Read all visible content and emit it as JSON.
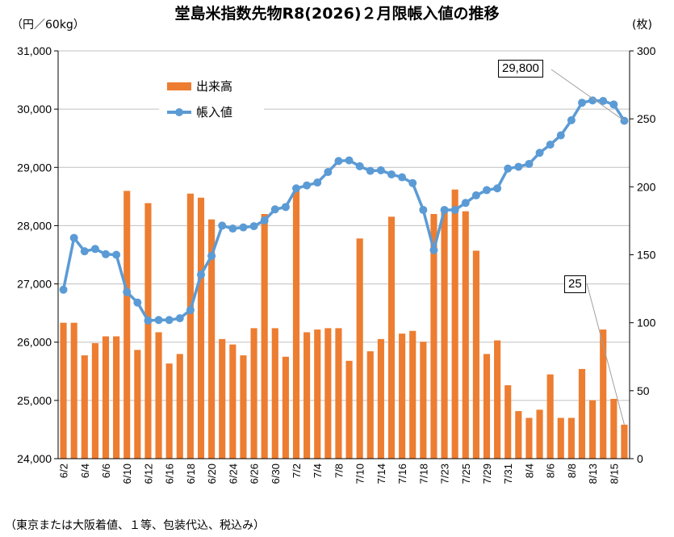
{
  "title": "堂島米指数先物R8(2026)２月限帳入値の推移",
  "unit_left": "（円／60kg）",
  "unit_right": "(枚)",
  "footnote": "（東京または大阪着値、１等、包装代込、税込み）",
  "legend": {
    "volume": "出来高",
    "price": "帳入値"
  },
  "callouts": {
    "last_price": "29,800",
    "last_volume": "25"
  },
  "colors": {
    "bar": "#ed7d31",
    "line": "#5b9bd5",
    "grid": "#c0c0c0"
  },
  "chart_data": {
    "type": "bar+line",
    "title": "堂島米指数先物R8(2026)２月限帳入値の推移",
    "x": [
      "6/2",
      "6/3",
      "6/4",
      "6/5",
      "6/6",
      "6/9",
      "6/10",
      "6/11",
      "6/12",
      "6/13",
      "6/16",
      "6/17",
      "6/18",
      "6/19",
      "6/20",
      "6/23",
      "6/24",
      "6/25",
      "6/26",
      "6/27",
      "6/30",
      "7/1",
      "7/2",
      "7/3",
      "7/4",
      "7/7",
      "7/8",
      "7/9",
      "7/10",
      "7/11",
      "7/14",
      "7/15",
      "7/16",
      "7/17",
      "7/18",
      "7/22",
      "7/23",
      "7/24",
      "7/25",
      "7/28",
      "7/29",
      "7/30",
      "7/31",
      "8/1",
      "8/4",
      "8/5",
      "8/6",
      "8/7",
      "8/8",
      "8/12",
      "8/13",
      "8/14",
      "8/15",
      "8/18"
    ],
    "x_tick_labels": [
      "6/2",
      "6/4",
      "6/6",
      "6/10",
      "6/12",
      "6/16",
      "6/18",
      "6/20",
      "6/24",
      "6/26",
      "6/30",
      "7/2",
      "7/4",
      "7/8",
      "7/10",
      "7/14",
      "7/16",
      "7/18",
      "7/23",
      "7/25",
      "7/29",
      "7/31",
      "8/4",
      "8/6",
      "8/8",
      "8/13",
      "8/15"
    ],
    "y_left": {
      "label": "（円／60kg）",
      "ylim": [
        24000,
        31000
      ],
      "ticks": [
        "24,000",
        "25,000",
        "26,000",
        "27,000",
        "28,000",
        "29,000",
        "30,000",
        "31,000"
      ]
    },
    "y_right": {
      "label": "(枚)",
      "ylim": [
        0,
        300
      ],
      "ticks": [
        "0",
        "50",
        "100",
        "150",
        "200",
        "250",
        "300"
      ]
    },
    "series": [
      {
        "name": "出来高",
        "type": "bar",
        "axis": "right",
        "values": [
          100,
          100,
          76,
          85,
          90,
          90,
          197,
          80,
          188,
          93,
          70,
          77,
          195,
          192,
          176,
          88,
          84,
          76,
          96,
          180,
          96,
          75,
          198,
          93,
          95,
          96,
          96,
          72,
          162,
          79,
          88,
          178,
          92,
          94,
          86,
          180,
          182,
          198,
          182,
          153,
          77,
          87,
          54,
          35,
          30,
          36,
          62,
          30,
          30,
          66,
          43,
          95,
          44,
          25
        ]
      },
      {
        "name": "帳入値",
        "type": "line",
        "axis": "left",
        "values": [
          26900,
          27790,
          27560,
          27600,
          27510,
          27500,
          26860,
          26680,
          26370,
          26380,
          26380,
          26410,
          26550,
          27160,
          27480,
          28000,
          27950,
          27970,
          27990,
          28090,
          28280,
          28320,
          28640,
          28690,
          28740,
          28920,
          29110,
          29120,
          29020,
          28940,
          28950,
          28880,
          28830,
          28730,
          28270,
          27580,
          28270,
          28270,
          28390,
          28520,
          28610,
          28640,
          28980,
          29010,
          29060,
          29250,
          29390,
          29550,
          29810,
          30110,
          30150,
          30140,
          30080,
          29800
        ]
      }
    ]
  }
}
